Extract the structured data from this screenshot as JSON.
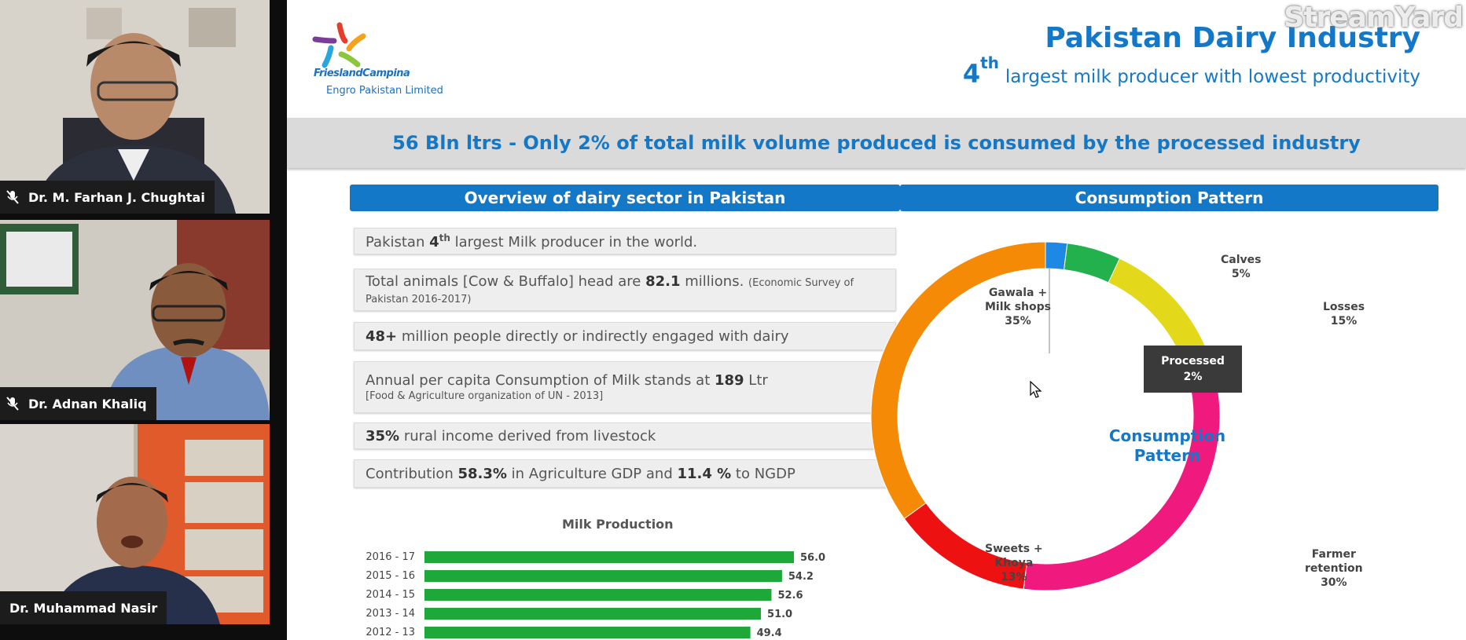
{
  "participants": [
    {
      "name": "Dr. M. Farhan J. Chughtai",
      "muted": true
    },
    {
      "name": "Dr. Adnan Khaliq",
      "muted": true
    },
    {
      "name": "Dr. Muhammad Nasir",
      "muted": false
    }
  ],
  "watermark": "StreamYard",
  "slide": {
    "logo": {
      "brand": "FrieslandCampina",
      "subtitle": "Engro Pakistan Limited"
    },
    "title": "Pakistan Dairy Industry",
    "subtitle": {
      "rank": "4",
      "suffix": "th",
      "text": "largest milk producer with lowest productivity"
    },
    "banner": "56 Bln ltrs - Only 2% of total milk volume produced is consumed by the processed industry",
    "left_header": "Overview of dairy sector in Pakistan",
    "right_header": "Consumption Pattern",
    "facts": {
      "f1": {
        "a": "Pakistan ",
        "b": "4",
        "sup": "th",
        "c": " largest Milk producer in the world."
      },
      "f2": {
        "a": "Total animals [Cow & Buffalo] head are ",
        "b": "82.1",
        "c": " millions. ",
        "note": "(Economic Survey of Pakistan 2016-2017)"
      },
      "f3": {
        "b": "48+",
        "c": " million people directly or indirectly engaged with dairy"
      },
      "f4": {
        "a": "Annual per capita Consumption of Milk stands at ",
        "b": "189",
        "c": " Ltr",
        "note": "[Food & Agriculture organization of UN - 2013]"
      },
      "f5": {
        "b": "35%",
        "c": " rural income derived from livestock"
      },
      "f6": {
        "a": "Contribution ",
        "b": "58.3%",
        "c": " in Agriculture GDP and ",
        "d": "11.4 %",
        "e": " to NGDP"
      }
    },
    "center_label": {
      "line1": "Consumption",
      "line2": "Pattern"
    }
  },
  "chart_data": [
    {
      "type": "bar",
      "title": "Milk Production",
      "orientation": "horizontal",
      "categories": [
        "2016 - 17",
        "2015 - 16",
        "2014 - 15",
        "2013 - 14",
        "2012 - 13"
      ],
      "values": [
        56.0,
        54.2,
        52.6,
        51.0,
        49.4
      ],
      "value_labels": [
        "56.0",
        "54.2",
        "52.6",
        "51.0",
        "49.4"
      ],
      "color": "#1fa83a"
    },
    {
      "type": "pie",
      "style": "donut",
      "slices": [
        {
          "label": "Processed",
          "value": 2,
          "pct": "2%",
          "color": "#1e88e5"
        },
        {
          "label": "Calves",
          "value": 5,
          "pct": "5%",
          "color": "#22b14c"
        },
        {
          "label": "Losses",
          "value": 15,
          "pct": "15%",
          "color": "#e3d81a"
        },
        {
          "label": "Farmer retention",
          "value": 30,
          "pct": "30%",
          "color": "#f0197d"
        },
        {
          "label": "Sweets + Khoya",
          "value": 13,
          "pct": "13%",
          "color": "#ee1111"
        },
        {
          "label": "Gawala + Milk shops",
          "value": 35,
          "pct": "35%",
          "color": "#f58a07"
        }
      ]
    }
  ]
}
